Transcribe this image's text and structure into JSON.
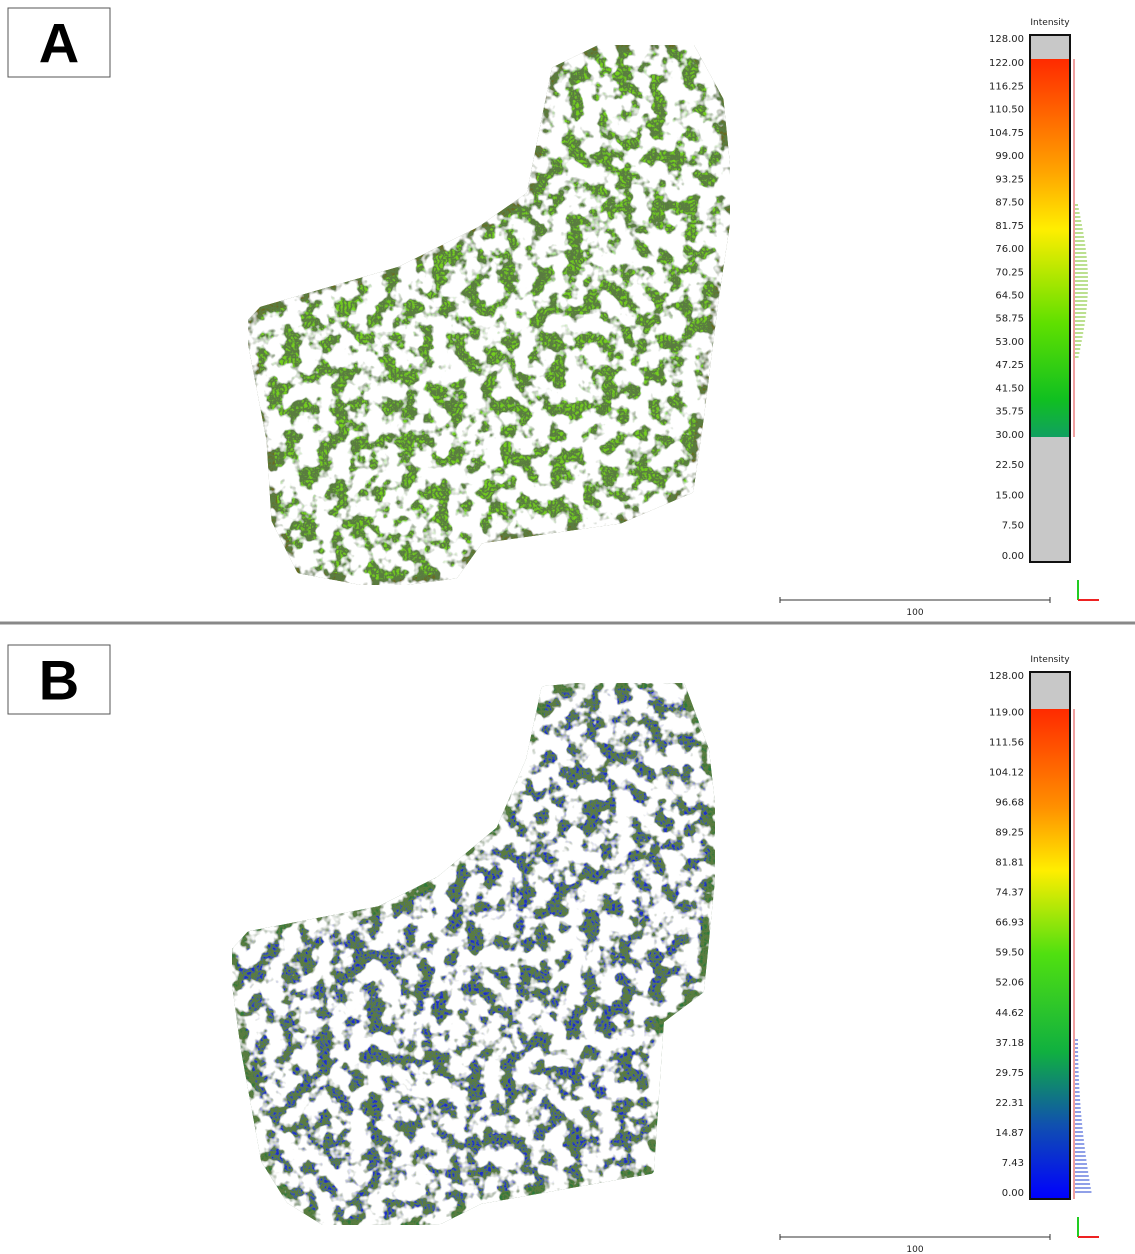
{
  "panels": [
    {
      "label": "A",
      "colorbar": {
        "title": "Intensity",
        "ticks": [
          "128.00",
          "122.00",
          "116.25",
          "110.50",
          "104.75",
          "99.00",
          "93.25",
          "87.50",
          "81.75",
          "76.00",
          "70.25",
          "64.50",
          "58.75",
          "53.00",
          "47.25",
          "41.50",
          "35.75",
          "30.00",
          "22.50",
          "15.00",
          "7.50",
          "0.00"
        ]
      },
      "scale_bar": "100"
    },
    {
      "label": "B",
      "colorbar": {
        "title": "Intensity",
        "ticks": [
          "128.00",
          "119.00",
          "111.56",
          "104.12",
          "96.68",
          "89.25",
          "81.81",
          "74.37",
          "66.93",
          "59.50",
          "52.06",
          "44.62",
          "37.18",
          "29.75",
          "22.31",
          "14.87",
          "7.43",
          "0.00"
        ]
      },
      "scale_bar": "100"
    }
  ]
}
